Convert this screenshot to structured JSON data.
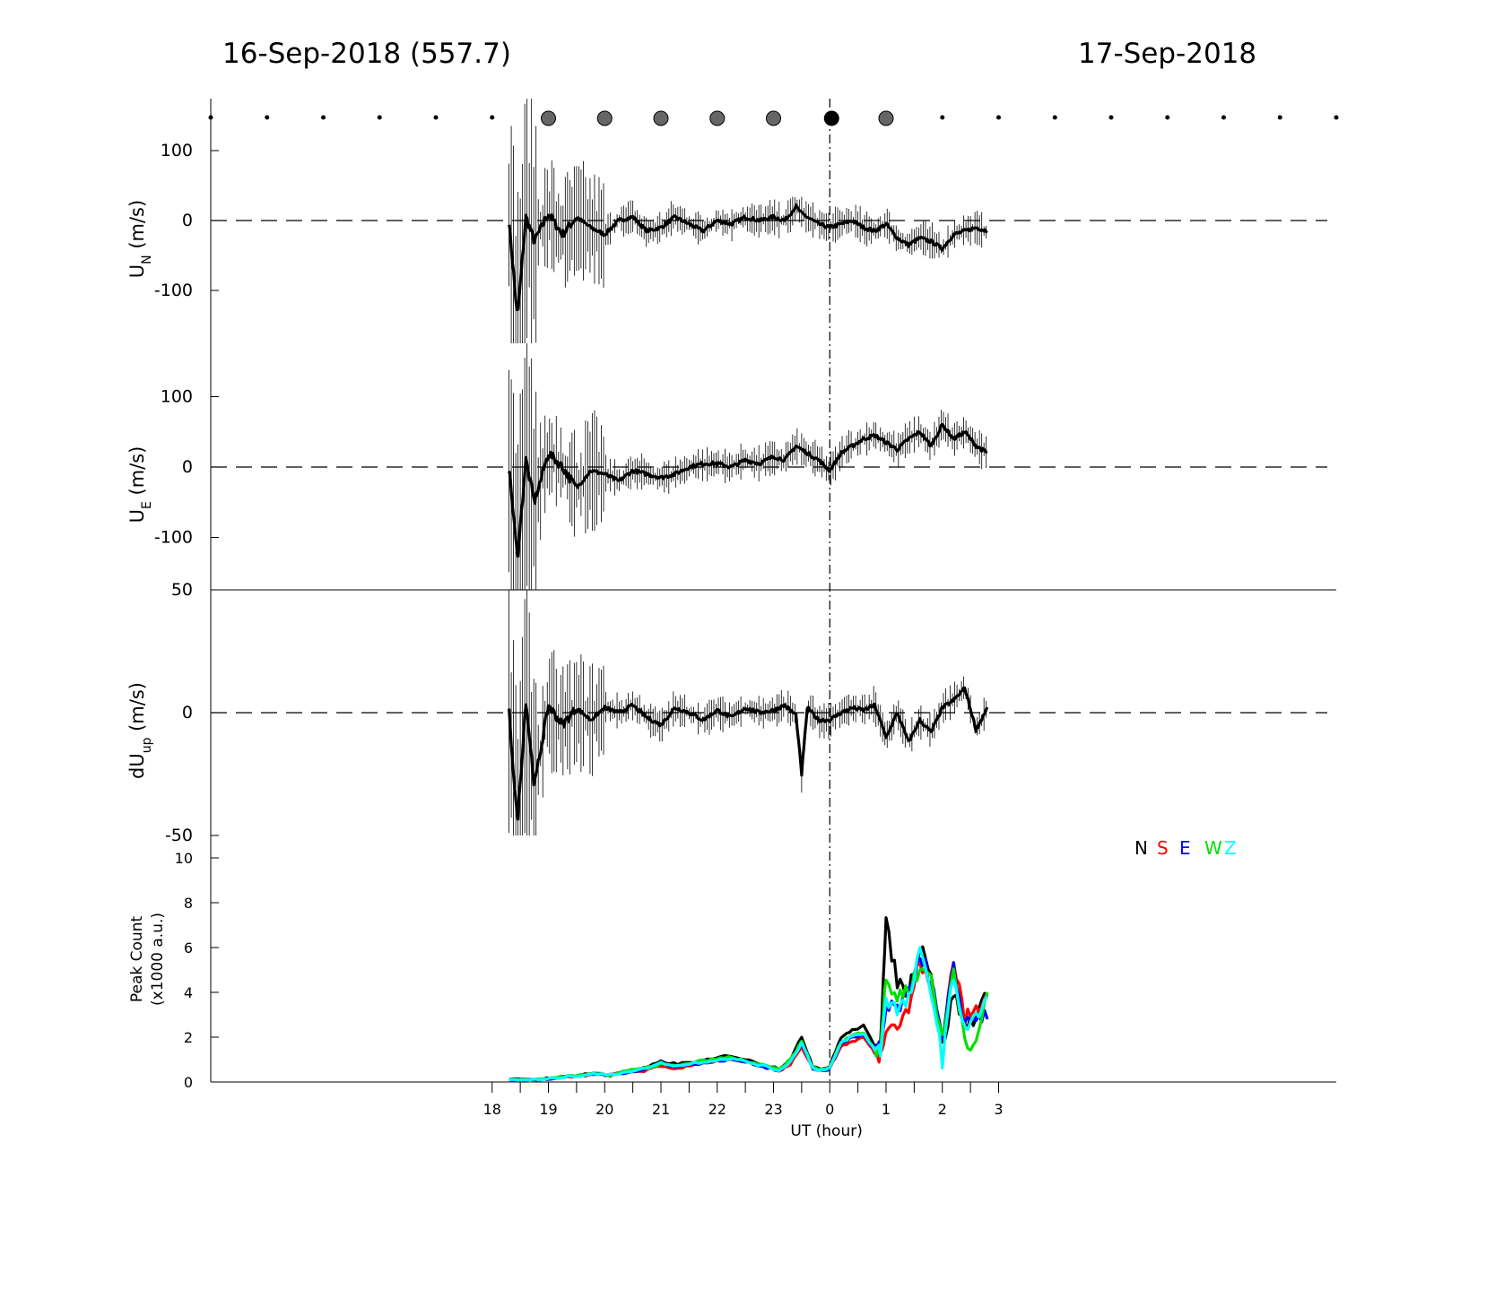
{
  "header": {
    "left_title": "16-Sep-2018 (557.7)",
    "right_title": "17-Sep-2018"
  },
  "chart_data": [
    {
      "type": "line",
      "panel": "UN",
      "ylabel": "U",
      "ylabel_sub": "N",
      "ylabel_unit": " (m/s)",
      "yticks": [
        "100",
        "0",
        "-100"
      ],
      "ylim": [
        -175,
        175
      ],
      "x_hours": [
        18.3,
        18.45,
        18.6,
        18.75,
        19.0,
        19.25,
        19.5,
        19.75,
        20.0,
        20.25,
        20.5,
        20.75,
        21.0,
        21.25,
        21.5,
        21.75,
        22.0,
        22.25,
        22.5,
        22.75,
        23.0,
        23.2,
        23.4,
        23.5,
        23.6,
        23.8,
        24.0,
        24.2,
        24.4,
        24.6,
        24.8,
        25.0,
        25.2,
        25.4,
        25.6,
        25.8,
        26.0,
        26.2,
        26.4,
        26.6,
        26.8
      ],
      "values": [
        0,
        -140,
        5,
        -30,
        10,
        -20,
        5,
        -10,
        -20,
        0,
        5,
        -15,
        -10,
        5,
        -5,
        -15,
        0,
        -5,
        5,
        0,
        5,
        0,
        20,
        10,
        5,
        -5,
        -10,
        -5,
        0,
        -10,
        -15,
        -5,
        -25,
        -35,
        -25,
        -30,
        -40,
        -20,
        -15,
        -10,
        -15
      ],
      "errorbars": true,
      "dashed_zero": true
    },
    {
      "type": "line",
      "panel": "UE",
      "ylabel": "U",
      "ylabel_sub": "E",
      "ylabel_unit": " (m/s)",
      "yticks": [
        "100",
        "0",
        "-100"
      ],
      "ylim": [
        -175,
        175
      ],
      "x_hours": [
        18.3,
        18.45,
        18.6,
        18.75,
        19.0,
        19.25,
        19.5,
        19.75,
        20.0,
        20.25,
        20.5,
        20.75,
        21.0,
        21.25,
        21.5,
        21.75,
        22.0,
        22.25,
        22.5,
        22.75,
        23.0,
        23.2,
        23.4,
        23.6,
        23.8,
        24.0,
        24.2,
        24.4,
        24.6,
        24.8,
        25.0,
        25.2,
        25.4,
        25.6,
        25.8,
        26.0,
        26.2,
        26.4,
        26.6,
        26.8
      ],
      "values": [
        0,
        -130,
        10,
        -50,
        20,
        0,
        -30,
        -5,
        -10,
        -20,
        -5,
        -10,
        -15,
        -10,
        0,
        5,
        5,
        0,
        10,
        5,
        15,
        10,
        30,
        20,
        10,
        -5,
        20,
        30,
        40,
        45,
        35,
        25,
        40,
        50,
        30,
        60,
        40,
        50,
        30,
        20
      ],
      "errorbars": true,
      "dashed_zero": true
    },
    {
      "type": "line",
      "panel": "dUup",
      "ylabel": "dU",
      "ylabel_sub": "up",
      "ylabel_unit": " (m/s)",
      "yticks": [
        "50",
        "0",
        "-50"
      ],
      "ylim": [
        -50,
        50
      ],
      "x_hours": [
        18.3,
        18.45,
        18.6,
        18.75,
        19.0,
        19.25,
        19.5,
        19.75,
        20.0,
        20.25,
        20.5,
        20.75,
        21.0,
        21.25,
        21.5,
        21.75,
        22.0,
        22.25,
        22.5,
        22.75,
        23.0,
        23.2,
        23.4,
        23.5,
        23.6,
        23.8,
        24.0,
        24.2,
        24.4,
        24.6,
        24.8,
        25.0,
        25.2,
        25.4,
        25.6,
        25.8,
        26.0,
        26.2,
        26.4,
        26.6,
        26.8
      ],
      "values": [
        0,
        -45,
        5,
        -30,
        3,
        -5,
        2,
        -3,
        2,
        0,
        3,
        -2,
        -5,
        2,
        0,
        -3,
        1,
        -2,
        2,
        0,
        1,
        3,
        -1,
        -25,
        2,
        -3,
        -3,
        0,
        2,
        1,
        3,
        -10,
        0,
        -12,
        -3,
        -8,
        2,
        5,
        10,
        -7,
        2
      ],
      "errorbars": true,
      "dashed_zero": true
    },
    {
      "type": "line",
      "panel": "PeakCount",
      "ylabel_line1": "Peak Count",
      "ylabel_line2": "(x1000 a.u.)",
      "yticks": [
        "10",
        "8",
        "6",
        "4",
        "2",
        "0"
      ],
      "ylim": [
        0,
        10
      ],
      "xlabel": "UT (hour)",
      "xticks": [
        "18",
        "19",
        "20",
        "21",
        "22",
        "23",
        "0",
        "1",
        "2",
        "3"
      ],
      "xlim_hours": [
        13,
        33
      ],
      "legend": [
        "N",
        "S",
        "E",
        "W",
        "Z"
      ],
      "legend_position": "top-right",
      "x_hours": [
        18.3,
        18.6,
        18.9,
        19.2,
        19.5,
        19.8,
        20.1,
        20.4,
        20.7,
        21.0,
        21.3,
        21.6,
        21.9,
        22.2,
        22.5,
        22.8,
        23.1,
        23.3,
        23.5,
        23.7,
        23.9,
        24.0,
        24.2,
        24.4,
        24.6,
        24.8,
        24.9,
        25.0,
        25.2,
        25.4,
        25.6,
        25.8,
        26.0,
        26.2,
        26.4,
        26.6,
        26.8
      ],
      "series": [
        {
          "name": "N",
          "values": [
            0.1,
            0.1,
            0.15,
            0.2,
            0.3,
            0.4,
            0.3,
            0.5,
            0.6,
            0.9,
            0.8,
            0.9,
            1.0,
            1.2,
            1.0,
            0.8,
            0.6,
            1.0,
            2.0,
            0.7,
            0.6,
            0.7,
            2.0,
            2.3,
            2.5,
            1.6,
            2.0,
            7.0,
            4.5,
            4.0,
            6.2,
            5.0,
            1.5,
            4.0,
            2.5,
            3.0,
            3.8
          ]
        },
        {
          "name": "S",
          "values": [
            0.1,
            0.1,
            0.1,
            0.2,
            0.25,
            0.35,
            0.3,
            0.45,
            0.5,
            0.7,
            0.6,
            0.8,
            0.9,
            1.0,
            0.9,
            0.7,
            0.5,
            0.8,
            1.6,
            0.6,
            0.5,
            0.6,
            1.6,
            1.8,
            2.0,
            1.3,
            1.2,
            2.6,
            2.5,
            3.2,
            5.5,
            4.0,
            2.0,
            5.5,
            2.8,
            3.2,
            4.0
          ]
        },
        {
          "name": "E",
          "values": [
            0.1,
            0.1,
            0.1,
            0.2,
            0.25,
            0.35,
            0.3,
            0.45,
            0.55,
            0.8,
            0.7,
            0.8,
            0.9,
            1.0,
            0.9,
            0.7,
            0.5,
            0.9,
            1.7,
            0.6,
            0.5,
            0.6,
            1.7,
            2.0,
            2.1,
            1.4,
            1.5,
            3.2,
            3.3,
            3.8,
            5.8,
            4.5,
            1.8,
            5.0,
            2.6,
            3.0,
            2.8
          ]
        },
        {
          "name": "W",
          "values": [
            0.1,
            0.1,
            0.1,
            0.2,
            0.3,
            0.4,
            0.3,
            0.5,
            0.6,
            0.8,
            0.7,
            0.9,
            1.0,
            1.1,
            0.95,
            0.75,
            0.55,
            1.0,
            1.8,
            0.65,
            0.55,
            0.65,
            1.8,
            2.1,
            2.2,
            1.5,
            1.6,
            4.5,
            3.8,
            4.2,
            5.0,
            4.8,
            1.8,
            5.0,
            2.0,
            1.5,
            4.0
          ]
        },
        {
          "name": "Z",
          "values": [
            0.1,
            0.1,
            0.1,
            0.2,
            0.28,
            0.38,
            0.3,
            0.48,
            0.58,
            0.85,
            0.72,
            0.85,
            0.95,
            1.05,
            0.92,
            0.72,
            0.52,
            0.9,
            1.75,
            0.62,
            0.52,
            0.62,
            1.75,
            2.05,
            2.15,
            1.45,
            1.4,
            3.8,
            3.2,
            3.6,
            5.7,
            4.2,
            1.0,
            4.8,
            2.4,
            2.8,
            3.8
          ]
        }
      ],
      "colors": {
        "N": "#000000",
        "S": "#ff0000",
        "E": "#0000ff",
        "W": "#00e000",
        "Z": "#00ffff"
      }
    }
  ],
  "moon_markers": {
    "small_dot_hours": [
      13,
      14,
      15,
      16,
      17,
      18,
      26,
      27,
      28,
      29,
      30,
      31,
      32,
      33
    ],
    "large_dot_hours": [
      19,
      20,
      21,
      22,
      23,
      25
    ],
    "filled_dot_hours": [
      24
    ],
    "large_color": "#666666",
    "filled_color": "#000000"
  },
  "midnight_hour": 24
}
